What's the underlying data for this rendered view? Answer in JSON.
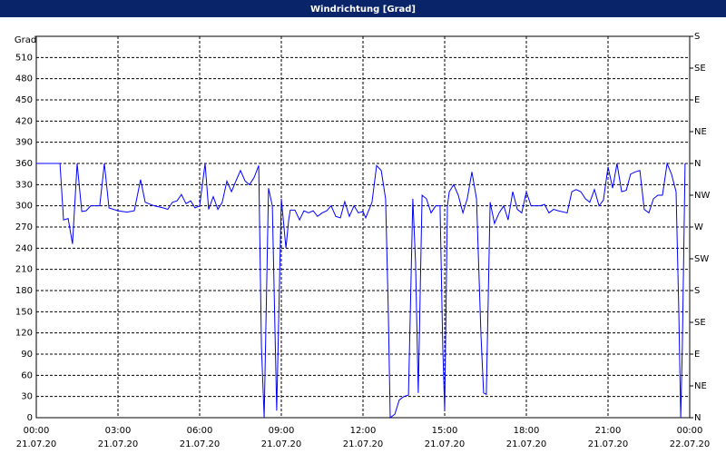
{
  "chart_data": {
    "type": "line",
    "title": "Windrichtung [Grad]",
    "y_label": "Grad",
    "xlim": [
      0,
      24
    ],
    "ylim": [
      0,
      540
    ],
    "y2lim": [
      0,
      540
    ],
    "grid": true,
    "xticks": [
      {
        "value": 0,
        "label": "00:00",
        "date": "21.07.20"
      },
      {
        "value": 3,
        "label": "03:00",
        "date": "21.07.20"
      },
      {
        "value": 6,
        "label": "06:00",
        "date": "21.07.20"
      },
      {
        "value": 9,
        "label": "09:00",
        "date": "21.07.20"
      },
      {
        "value": 12,
        "label": "12:00",
        "date": "21.07.20"
      },
      {
        "value": 15,
        "label": "15:00",
        "date": "21.07.20"
      },
      {
        "value": 18,
        "label": "18:00",
        "date": "21.07.20"
      },
      {
        "value": 21,
        "label": "21:00",
        "date": "21.07.20"
      },
      {
        "value": 24,
        "label": "00:00",
        "date": "22.07.20"
      }
    ],
    "yticks": [
      0,
      30,
      60,
      90,
      120,
      150,
      180,
      210,
      240,
      270,
      300,
      330,
      360,
      390,
      420,
      450,
      480,
      510
    ],
    "y2ticks": [
      {
        "value": 0,
        "label": "N"
      },
      {
        "value": 45,
        "label": "NE"
      },
      {
        "value": 90,
        "label": "E"
      },
      {
        "value": 135,
        "label": "SE"
      },
      {
        "value": 180,
        "label": "S"
      },
      {
        "value": 225,
        "label": "SW"
      },
      {
        "value": 270,
        "label": "W"
      },
      {
        "value": 315,
        "label": "NW"
      },
      {
        "value": 360,
        "label": "N"
      },
      {
        "value": 405,
        "label": "NE"
      },
      {
        "value": 450,
        "label": "E"
      },
      {
        "value": 495,
        "label": "SE"
      },
      {
        "value": 540,
        "label": "S"
      }
    ],
    "x": [
      0,
      0.87,
      1.0,
      1.17,
      1.33,
      1.5,
      1.67,
      1.83,
      2.0,
      2.33,
      2.5,
      2.67,
      3.0,
      3.33,
      3.6,
      3.83,
      4.0,
      4.33,
      4.67,
      4.83,
      5.0,
      5.17,
      5.33,
      5.5,
      5.67,
      5.83,
      6.0,
      6.2,
      6.33,
      6.5,
      6.67,
      6.83,
      7.0,
      7.17,
      7.33,
      7.5,
      7.67,
      7.83,
      8.0,
      8.17,
      8.27,
      8.37,
      8.53,
      8.67,
      8.83,
      9.0,
      9.17,
      9.27,
      9.33,
      9.5,
      9.67,
      9.83,
      10.0,
      10.17,
      10.33,
      10.5,
      10.67,
      10.83,
      11.0,
      11.17,
      11.33,
      11.5,
      11.67,
      11.83,
      12.0,
      12.1,
      12.33,
      12.5,
      12.67,
      12.83,
      12.93,
      13.0,
      13.17,
      13.33,
      13.5,
      13.67,
      13.83,
      13.93,
      14.03,
      14.17,
      14.33,
      14.5,
      14.67,
      14.83,
      14.93,
      15.0,
      15.1,
      15.17,
      15.33,
      15.5,
      15.67,
      15.83,
      16.0,
      16.17,
      16.33,
      16.43,
      16.53,
      16.67,
      16.83,
      17.0,
      17.17,
      17.33,
      17.5,
      17.67,
      17.83,
      18.0,
      18.17,
      18.33,
      18.5,
      18.67,
      18.83,
      19.0,
      19.17,
      19.5,
      19.67,
      19.83,
      20.0,
      20.17,
      20.33,
      20.5,
      20.67,
      20.83,
      21.0,
      21.17,
      21.33,
      21.5,
      21.67,
      21.83,
      22.0,
      22.17,
      22.33,
      22.5,
      22.67,
      22.83,
      23.0,
      23.17,
      23.33,
      23.5,
      23.6,
      23.67,
      23.73,
      23.83
    ],
    "series": [
      {
        "name": "Windrichtung",
        "color": "#0000ff",
        "values": [
          360,
          360,
          280,
          282,
          246,
          360,
          292,
          293,
          300,
          300,
          360,
          297,
          293,
          291,
          293,
          337,
          305,
          300,
          297,
          295,
          305,
          307,
          316,
          303,
          307,
          297,
          300,
          360,
          295,
          313,
          295,
          305,
          335,
          320,
          335,
          350,
          335,
          330,
          340,
          357,
          100,
          0,
          325,
          300,
          10,
          310,
          240,
          280,
          294,
          294,
          280,
          293,
          290,
          293,
          285,
          290,
          293,
          300,
          285,
          283,
          306,
          285,
          300,
          290,
          292,
          283,
          305,
          357,
          350,
          310,
          150,
          0,
          5,
          25,
          30,
          32,
          310,
          220,
          35,
          315,
          310,
          290,
          300,
          300,
          100,
          10,
          300,
          320,
          330,
          315,
          290,
          310,
          348,
          310,
          120,
          35,
          33,
          305,
          275,
          290,
          300,
          280,
          320,
          295,
          290,
          320,
          300,
          300,
          300,
          302,
          290,
          295,
          293,
          290,
          320,
          323,
          320,
          310,
          305,
          323,
          300,
          308,
          355,
          325,
          360,
          320,
          322,
          345,
          348,
          350,
          295,
          290,
          310,
          315,
          315,
          360,
          345,
          320,
          150,
          0,
          100,
          360
        ]
      }
    ]
  }
}
